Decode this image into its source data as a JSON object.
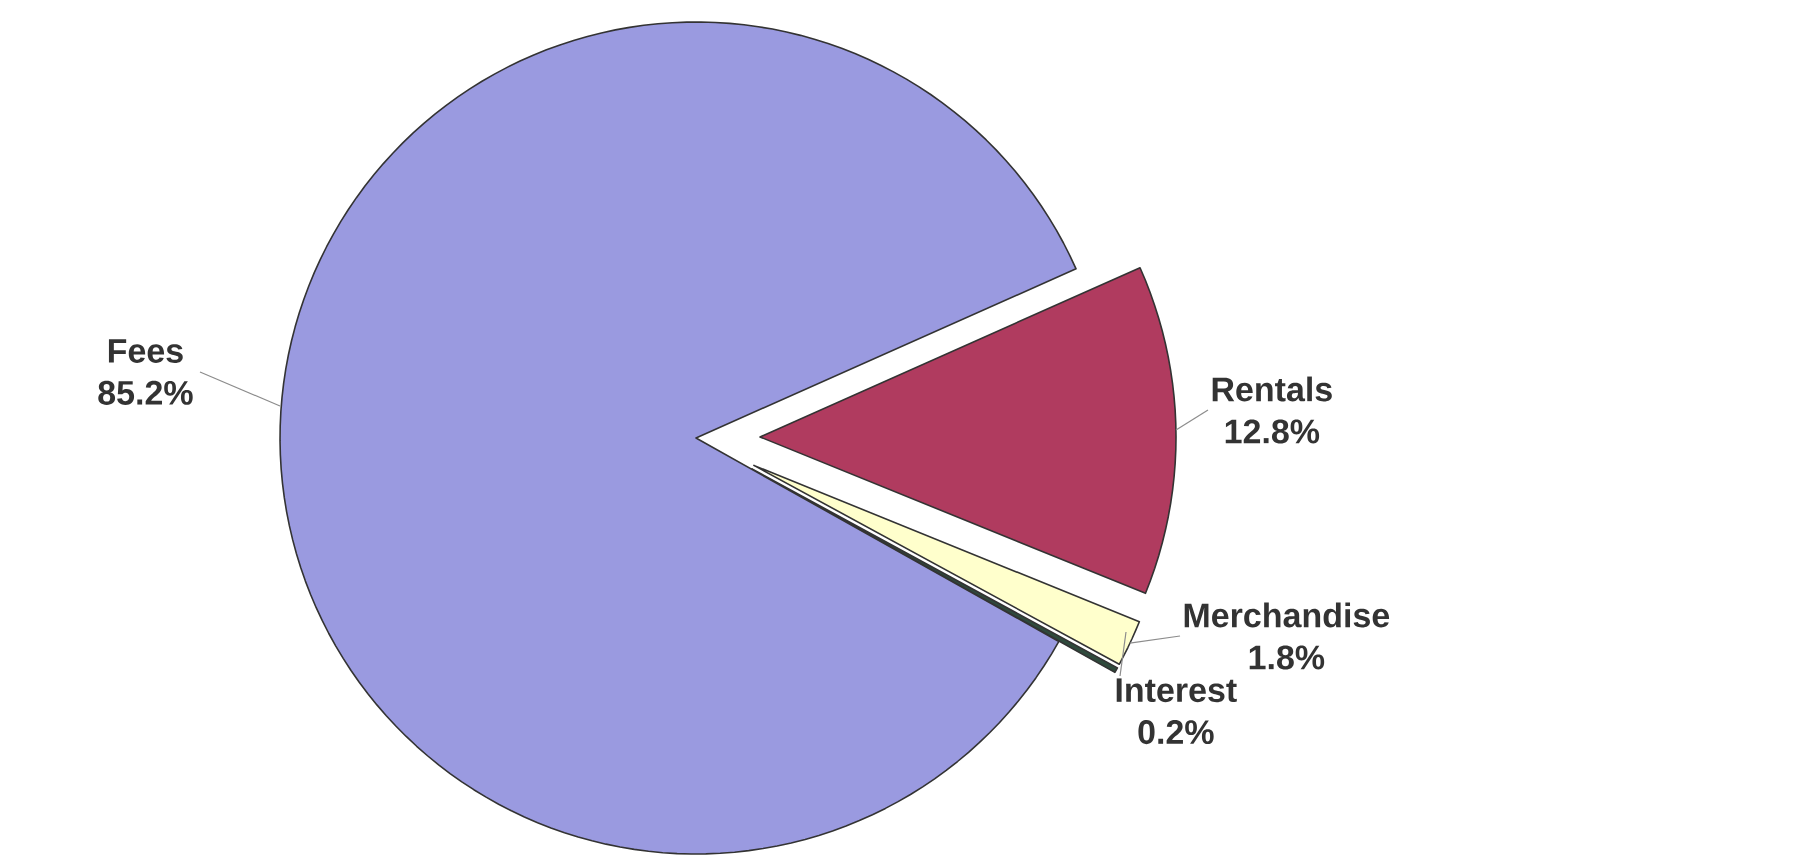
{
  "chart_data": {
    "type": "pie",
    "categories": [
      "Fees",
      "Rentals",
      "Merchandise",
      "Interest"
    ],
    "values": [
      85.2,
      12.8,
      1.8,
      0.2
    ],
    "value_labels": [
      "85.2%",
      "12.8%",
      "1.8%",
      "0.2%"
    ],
    "colors": [
      "#9a9ae0",
      "#b03b5f",
      "#ffffcc",
      "#2f4a3c"
    ]
  }
}
